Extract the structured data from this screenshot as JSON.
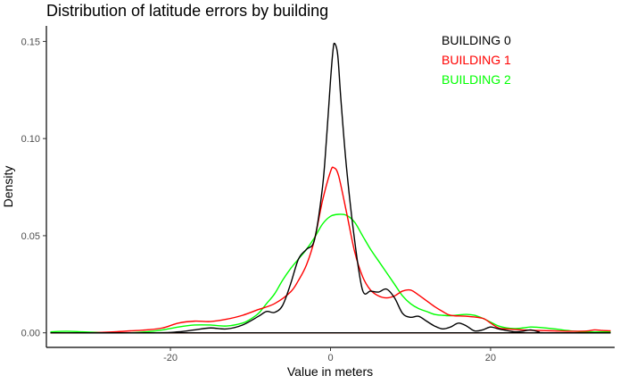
{
  "chart_data": {
    "type": "line",
    "title": "Distribution of latitude errors by building",
    "xlabel": "Value in meters",
    "ylabel": "Density",
    "xlim": [
      -35.5,
      35.5
    ],
    "ylim": [
      -0.0075,
      0.158
    ],
    "x_ticks": [
      -20,
      0,
      20
    ],
    "x_tick_labels": [
      "-20",
      "0",
      "20"
    ],
    "y_ticks": [
      0,
      0.05,
      0.1,
      0.15
    ],
    "y_tick_labels": [
      "0.00",
      "0.05",
      "0.10",
      "0.15"
    ],
    "grid": false,
    "legend_position": "top-right",
    "series": [
      {
        "name": "BUILDING 0",
        "color": "#000000",
        "points": [
          [
            -35,
            0
          ],
          [
            -22,
            0
          ],
          [
            -19,
            0.0005
          ],
          [
            -17,
            0.0015
          ],
          [
            -15,
            0.0025
          ],
          [
            -13,
            0.002
          ],
          [
            -11,
            0.004
          ],
          [
            -9,
            0.0085
          ],
          [
            -8,
            0.011
          ],
          [
            -7,
            0.0105
          ],
          [
            -6,
            0.014
          ],
          [
            -5,
            0.025
          ],
          [
            -4,
            0.038
          ],
          [
            -3,
            0.043
          ],
          [
            -2,
            0.048
          ],
          [
            -1,
            0.075
          ],
          [
            -0.5,
            0.1
          ],
          [
            0,
            0.13
          ],
          [
            0.3,
            0.145
          ],
          [
            0.5,
            0.149
          ],
          [
            0.9,
            0.143
          ],
          [
            1.3,
            0.12
          ],
          [
            2,
            0.085
          ],
          [
            3,
            0.048
          ],
          [
            4,
            0.022
          ],
          [
            5,
            0.0215
          ],
          [
            6,
            0.021
          ],
          [
            7,
            0.0225
          ],
          [
            8,
            0.018
          ],
          [
            9,
            0.01
          ],
          [
            10,
            0.008
          ],
          [
            11,
            0.0085
          ],
          [
            12,
            0.006
          ],
          [
            13,
            0.0035
          ],
          [
            14,
            0.002
          ],
          [
            15,
            0.003
          ],
          [
            16,
            0.005
          ],
          [
            17,
            0.0035
          ],
          [
            18,
            0.001
          ],
          [
            19,
            0.0015
          ],
          [
            20,
            0.003
          ],
          [
            21,
            0.002
          ],
          [
            22,
            0.0012
          ],
          [
            23,
            0.0005
          ],
          [
            24,
            0.0008
          ],
          [
            25,
            0.0015
          ],
          [
            26,
            0.0005
          ],
          [
            27,
            0
          ],
          [
            35,
            0
          ]
        ]
      },
      {
        "name": "BUILDING 1",
        "color": "#ff0000",
        "points": [
          [
            -35,
            0
          ],
          [
            -30,
            0
          ],
          [
            -27,
            0.0005
          ],
          [
            -25,
            0.001
          ],
          [
            -23,
            0.0015
          ],
          [
            -21,
            0.0025
          ],
          [
            -19,
            0.005
          ],
          [
            -17,
            0.006
          ],
          [
            -15,
            0.0058
          ],
          [
            -13,
            0.007
          ],
          [
            -11,
            0.009
          ],
          [
            -9,
            0.012
          ],
          [
            -7,
            0.015
          ],
          [
            -5,
            0.021
          ],
          [
            -4,
            0.027
          ],
          [
            -3,
            0.035
          ],
          [
            -2,
            0.048
          ],
          [
            -1,
            0.068
          ],
          [
            0,
            0.083
          ],
          [
            0.4,
            0.085
          ],
          [
            1,
            0.081
          ],
          [
            2,
            0.062
          ],
          [
            3,
            0.042
          ],
          [
            4,
            0.029
          ],
          [
            5,
            0.022
          ],
          [
            6,
            0.019
          ],
          [
            7,
            0.018
          ],
          [
            8,
            0.019
          ],
          [
            9,
            0.0215
          ],
          [
            10,
            0.022
          ],
          [
            11,
            0.0195
          ],
          [
            12,
            0.0165
          ],
          [
            13,
            0.0135
          ],
          [
            14,
            0.011
          ],
          [
            15,
            0.009
          ],
          [
            17,
            0.0085
          ],
          [
            19,
            0.0075
          ],
          [
            20,
            0.005
          ],
          [
            21,
            0.0025
          ],
          [
            22,
            0.002
          ],
          [
            24,
            0.0015
          ],
          [
            26,
            0.0012
          ],
          [
            28,
            0.001
          ],
          [
            30,
            0.0008
          ],
          [
            32,
            0.0009
          ],
          [
            33,
            0.0015
          ],
          [
            34,
            0.0012
          ],
          [
            35,
            0.001
          ]
        ]
      },
      {
        "name": "BUILDING 2",
        "color": "#00ff00",
        "points": [
          [
            -35,
            0.0005
          ],
          [
            -33,
            0.0008
          ],
          [
            -31,
            0.0005
          ],
          [
            -29,
            0.0002
          ],
          [
            -27,
            0
          ],
          [
            -25,
            0
          ],
          [
            -23,
            0.0005
          ],
          [
            -21,
            0.0015
          ],
          [
            -19,
            0.003
          ],
          [
            -17,
            0.004
          ],
          [
            -15,
            0.004
          ],
          [
            -13,
            0.0035
          ],
          [
            -11,
            0.005
          ],
          [
            -10,
            0.007
          ],
          [
            -9,
            0.01
          ],
          [
            -8,
            0.015
          ],
          [
            -7,
            0.02
          ],
          [
            -6,
            0.027
          ],
          [
            -5,
            0.033
          ],
          [
            -4,
            0.038
          ],
          [
            -3,
            0.043
          ],
          [
            -2,
            0.049
          ],
          [
            -1,
            0.056
          ],
          [
            0,
            0.06
          ],
          [
            1,
            0.061
          ],
          [
            2,
            0.0605
          ],
          [
            3,
            0.057
          ],
          [
            4,
            0.05
          ],
          [
            5,
            0.043
          ],
          [
            6,
            0.037
          ],
          [
            7,
            0.031
          ],
          [
            8,
            0.025
          ],
          [
            9,
            0.019
          ],
          [
            10,
            0.015
          ],
          [
            11,
            0.0125
          ],
          [
            12,
            0.011
          ],
          [
            13,
            0.0095
          ],
          [
            14,
            0.009
          ],
          [
            15,
            0.0088
          ],
          [
            16,
            0.0092
          ],
          [
            17,
            0.0095
          ],
          [
            18,
            0.009
          ],
          [
            19,
            0.0075
          ],
          [
            20,
            0.0055
          ],
          [
            21,
            0.0035
          ],
          [
            22,
            0.0025
          ],
          [
            23,
            0.0022
          ],
          [
            24,
            0.0025
          ],
          [
            25,
            0.003
          ],
          [
            26,
            0.0028
          ],
          [
            28,
            0.002
          ],
          [
            30,
            0.001
          ],
          [
            32,
            0.0005
          ],
          [
            35,
            0.0005
          ]
        ]
      }
    ]
  }
}
